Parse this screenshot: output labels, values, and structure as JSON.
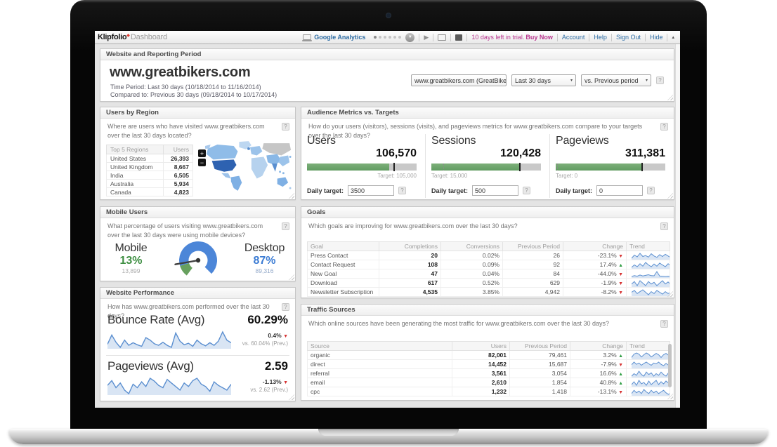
{
  "ui": {
    "help": "?",
    "caret": "▾",
    "play": "▶",
    "menu_caret": "▼",
    "collapse": "▴",
    "down_arrow": "▼"
  },
  "topbar": {
    "logo": "Klipfolio",
    "product": "Dashboard",
    "tab_label": "Google Analytics",
    "trial_text": "10 days left in trial.",
    "buy_now_label": "Buy Now",
    "account_label": "Account",
    "help_label": "Help",
    "signout_label": "Sign Out",
    "hide_label": "Hide",
    "pager_dots": 6
  },
  "reporting": {
    "title": "Website and Reporting Period",
    "site_title": "www.greatbikers.com",
    "time_period": "Time Period: Last 30 days (10/18/2014 to 11/16/2014)",
    "compared_to": "Compared to: Previous 30 days (09/18/2014 to 10/17/2014)",
    "site_select": "www.greatbikers.com (GreatBikers.c",
    "range_select": "Last 30 days",
    "compare_select": "vs. Previous period"
  },
  "users_by_region": {
    "title": "Users by Region",
    "question": "Where are users who have visited www.greatbikers.com over the last 30 days located?",
    "col_region": "Top 5 Regions",
    "col_users": "Users",
    "rows": [
      {
        "region": "United States",
        "users": "26,393"
      },
      {
        "region": "United Kingdom",
        "users": "8,667"
      },
      {
        "region": "India",
        "users": "6,505"
      },
      {
        "region": "Australia",
        "users": "5,934"
      },
      {
        "region": "Canada",
        "users": "4,823"
      }
    ],
    "zoom_in": "+",
    "zoom_out": "−"
  },
  "audience": {
    "title": "Audience Metrics vs. Targets",
    "question": "How do your users (visitors), sessions (visits), and pageviews metrics for www.greatbikers.com compare to your targets over the last 30 days?",
    "daily_target_label": "Daily target:",
    "metrics": [
      {
        "label": "Users",
        "value": "106,570",
        "target_text": "Target: 105,000",
        "daily_target": "3500",
        "bar_pct": 75,
        "marker_pct": 79,
        "target_align": "right"
      },
      {
        "label": "Sessions",
        "value": "120,428",
        "target_text": "Target: 15,000",
        "daily_target": "500",
        "bar_pct": 80,
        "marker_pct": 80,
        "tick_pct": 11,
        "target_align": "left"
      },
      {
        "label": "Pageviews",
        "value": "311,381",
        "target_text": "Target: 0",
        "daily_target": "0",
        "bar_pct": 78,
        "marker_pct": 78.5,
        "tick_pct": 1,
        "target_align": "left"
      }
    ]
  },
  "mobile": {
    "title": "Mobile Users",
    "question": "What percentage of users visiting www.greatbikers.com over the last 30 days were using mobile devices?",
    "mobile_label": "Mobile",
    "mobile_pct": "13%",
    "mobile_count": "13,899",
    "desktop_label": "Desktop",
    "desktop_pct": "87%",
    "desktop_count": "89,316"
  },
  "goals": {
    "title": "Goals",
    "question": "Which goals are improving for www.greatbikers.com over the last 30 days?",
    "headers": [
      "Goal",
      "Completions",
      "Conversions",
      "Previous Period",
      "Change",
      "Trend"
    ],
    "rows": [
      {
        "goal": "Press Contact",
        "completions": "20",
        "conversions": "0.02%",
        "previous": "26",
        "change": "-23.1%",
        "direction": "down",
        "trend": [
          38,
          52,
          44,
          60,
          46,
          50,
          43,
          58,
          48,
          42,
          54,
          46,
          56,
          48,
          40
        ]
      },
      {
        "goal": "Contact Request",
        "completions": "108",
        "conversions": "0.09%",
        "previous": "92",
        "change": "17.4%",
        "direction": "up",
        "trend": [
          44,
          52,
          46,
          56,
          48,
          60,
          52,
          46,
          55,
          48,
          58,
          52,
          46,
          56,
          49
        ]
      },
      {
        "goal": "New Goal",
        "completions": "47",
        "conversions": "0.04%",
        "previous": "84",
        "change": "-44.0%",
        "direction": "down",
        "trend": [
          36,
          42,
          38,
          46,
          40,
          44,
          48,
          42,
          41,
          70,
          39,
          38,
          36,
          38,
          37
        ]
      },
      {
        "goal": "Download",
        "completions": "617",
        "conversions": "0.52%",
        "previous": "629",
        "change": "-1.9%",
        "direction": "down",
        "trend": [
          50,
          56,
          46,
          58,
          52,
          46,
          56,
          50,
          54,
          46,
          52,
          58,
          50,
          55,
          48
        ]
      },
      {
        "goal": "Newsletter Subscription",
        "completions": "4,535",
        "conversions": "3.85%",
        "previous": "4,942",
        "change": "-8.2%",
        "direction": "down",
        "trend": [
          52,
          58,
          48,
          54,
          60,
          52,
          44,
          54,
          48,
          58,
          52,
          46,
          54,
          48,
          52
        ]
      }
    ]
  },
  "performance": {
    "title": "Website Performance",
    "question": "How has www.greatbikers.com performed over the last 30 days?",
    "metrics": [
      {
        "label": "Bounce Rate (Avg)",
        "value": "60.29%",
        "change": "0.4%",
        "direction": "down",
        "vs": "vs. 60.04% (Prev.)",
        "trend": [
          44,
          62,
          48,
          38,
          52,
          42,
          47,
          43,
          40,
          57,
          52,
          45,
          42,
          48,
          42,
          38,
          66,
          50,
          43,
          46,
          40,
          52,
          45,
          41,
          47,
          42,
          50,
          68,
          52,
          47
        ]
      },
      {
        "label": "Pageviews (Avg)",
        "value": "2.59",
        "change": "-1.13%",
        "direction": "down",
        "vs": "vs. 2.62 (Prev.)",
        "trend": [
          48,
          56,
          44,
          52,
          40,
          34,
          50,
          44,
          54,
          46,
          60,
          55,
          48,
          44,
          58,
          52,
          46,
          40,
          52,
          46,
          56,
          60,
          50,
          46,
          38,
          54,
          48,
          44,
          40,
          50
        ]
      }
    ]
  },
  "traffic": {
    "title": "Traffic Sources",
    "question": "Which online sources have been generating the most traffic for www.greatbikers.com over the last 30 days?",
    "headers": [
      "Source",
      "Users",
      "Previous Period",
      "Change",
      "Trend"
    ],
    "rows": [
      {
        "source": "organic",
        "users": "82,001",
        "previous": "79,461",
        "change": "3.2%",
        "direction": "up",
        "trend": [
          40,
          55,
          60,
          55,
          42,
          52,
          60,
          54,
          42,
          50,
          58,
          52,
          40,
          52,
          58,
          50,
          38
        ]
      },
      {
        "source": "direct",
        "users": "14,452",
        "previous": "15,687",
        "change": "-7.9%",
        "direction": "down",
        "trend": [
          46,
          58,
          48,
          54,
          44,
          52,
          58,
          50,
          44,
          54,
          50,
          58,
          48,
          42,
          52,
          44,
          36
        ]
      },
      {
        "source": "referral",
        "users": "3,561",
        "previous": "3,054",
        "change": "16.6%",
        "direction": "up",
        "trend": [
          40,
          46,
          42,
          52,
          44,
          40,
          50,
          44,
          48,
          40,
          46,
          42,
          50,
          44,
          40,
          48,
          42
        ]
      },
      {
        "source": "email",
        "users": "2,610",
        "previous": "1,854",
        "change": "40.8%",
        "direction": "up",
        "trend": [
          44,
          52,
          42,
          56,
          46,
          50,
          42,
          54,
          44,
          50,
          56,
          44,
          52,
          46,
          54,
          48,
          44
        ]
      },
      {
        "source": "cpc",
        "users": "1,232",
        "previous": "1,418",
        "change": "-13.1%",
        "direction": "down",
        "trend": [
          42,
          50,
          44,
          48,
          42,
          52,
          46,
          42,
          50,
          44,
          48,
          42,
          46,
          50,
          44,
          40,
          44
        ]
      }
    ]
  },
  "colors": {
    "accent_green": "#619c61",
    "accent_blue": "#3c7cd4",
    "up_green": "#2f9e44",
    "down_red": "#d63333",
    "trial_magenta": "#b9368f",
    "link_blue": "#2e6da4",
    "map_dark_blue": "#2e62b1",
    "map_gray": "#c6c6c6"
  }
}
